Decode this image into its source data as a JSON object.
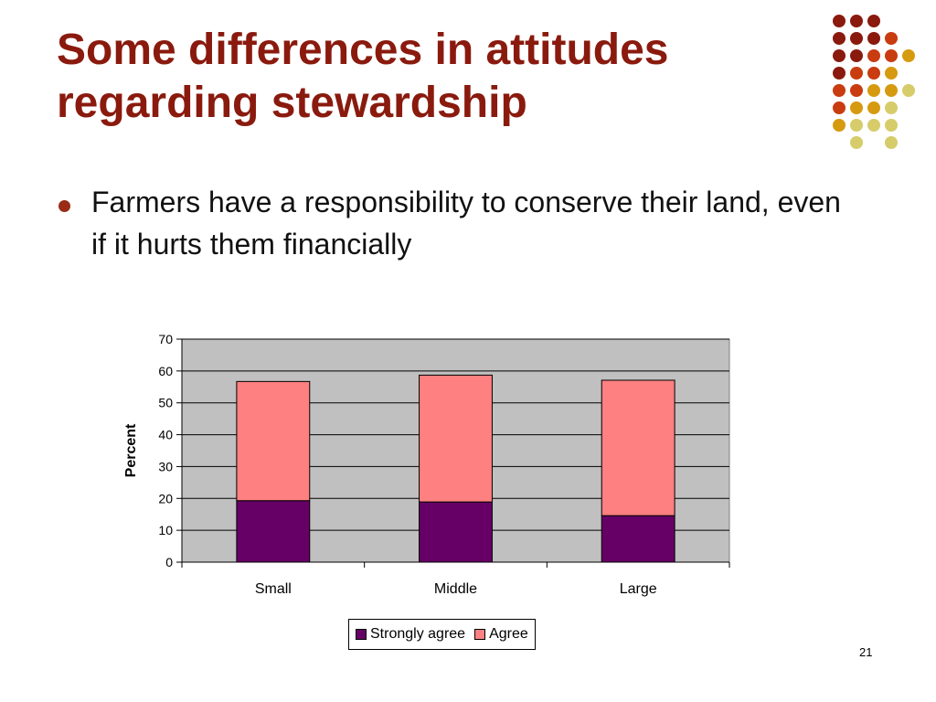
{
  "slide": {
    "title_lines": [
      "Some differences in attitudes",
      "regarding stewardship"
    ],
    "bullet": "Farmers have a responsibility to conserve their land, even if it hurts them financially",
    "slide_number": "21",
    "colors": {
      "title": "#8a1a0e",
      "plot_background": "#c0c0c0",
      "strongly_agree": "#660066",
      "agree": "#ff8080"
    },
    "decoration_dot_colors": [
      "#8a1a0e",
      "#c83c10",
      "#d69a10",
      "#d6cc6a"
    ]
  },
  "chart_data": {
    "type": "bar",
    "stacked": true,
    "categories": [
      "Small",
      "Middle",
      "Large"
    ],
    "series": [
      {
        "name": "Strongly agree",
        "values": [
          19.3,
          18.9,
          14.6
        ]
      },
      {
        "name": "Agree",
        "values": [
          37.4,
          39.8,
          42.5
        ]
      }
    ],
    "ylabel": "Percent",
    "ylim": [
      0,
      70
    ],
    "yticks": [
      "0",
      "10",
      "20",
      "30",
      "40",
      "50",
      "60",
      "70"
    ],
    "grid": true,
    "legend": "bottom"
  }
}
